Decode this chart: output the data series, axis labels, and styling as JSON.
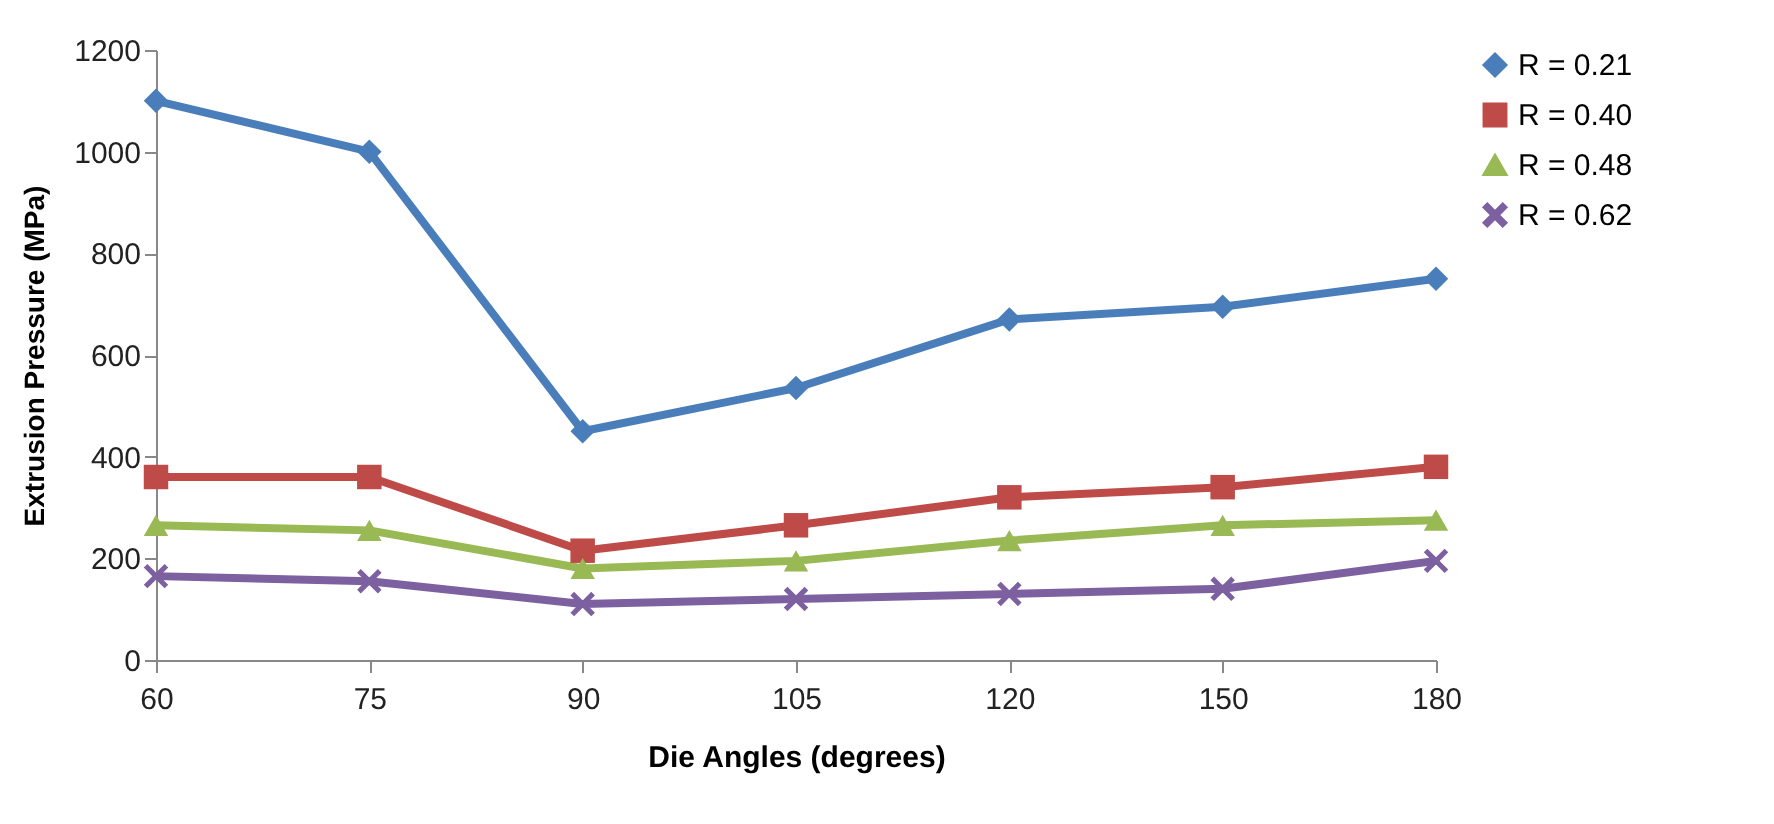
{
  "chart_data": {
    "type": "line",
    "xlabel": "Die Angles (degrees)",
    "ylabel": "Extrusion Pressure (MPa)",
    "categories": [
      "60",
      "75",
      "90",
      "105",
      "120",
      "150",
      "180"
    ],
    "ylim": [
      0,
      1200
    ],
    "yticks": [
      0,
      200,
      400,
      600,
      800,
      1000,
      1200
    ],
    "grid": false,
    "legend": "right",
    "line_style": "solid",
    "series": [
      {
        "name": "R = 0.21",
        "color": "#4a7ebb",
        "marker": "diamond",
        "values": [
          1100,
          1000,
          450,
          535,
          670,
          695,
          750
        ]
      },
      {
        "name": "R = 0.40",
        "color": "#be4b48",
        "marker": "square",
        "values": [
          360,
          360,
          215,
          265,
          320,
          340,
          380
        ]
      },
      {
        "name": "R = 0.48",
        "color": "#98b954",
        "marker": "triangle",
        "values": [
          265,
          255,
          180,
          195,
          235,
          265,
          275
        ]
      },
      {
        "name": "R = 0.62",
        "color": "#7d60a0",
        "marker": "cross",
        "values": [
          165,
          155,
          110,
          120,
          130,
          140,
          195
        ]
      }
    ]
  }
}
